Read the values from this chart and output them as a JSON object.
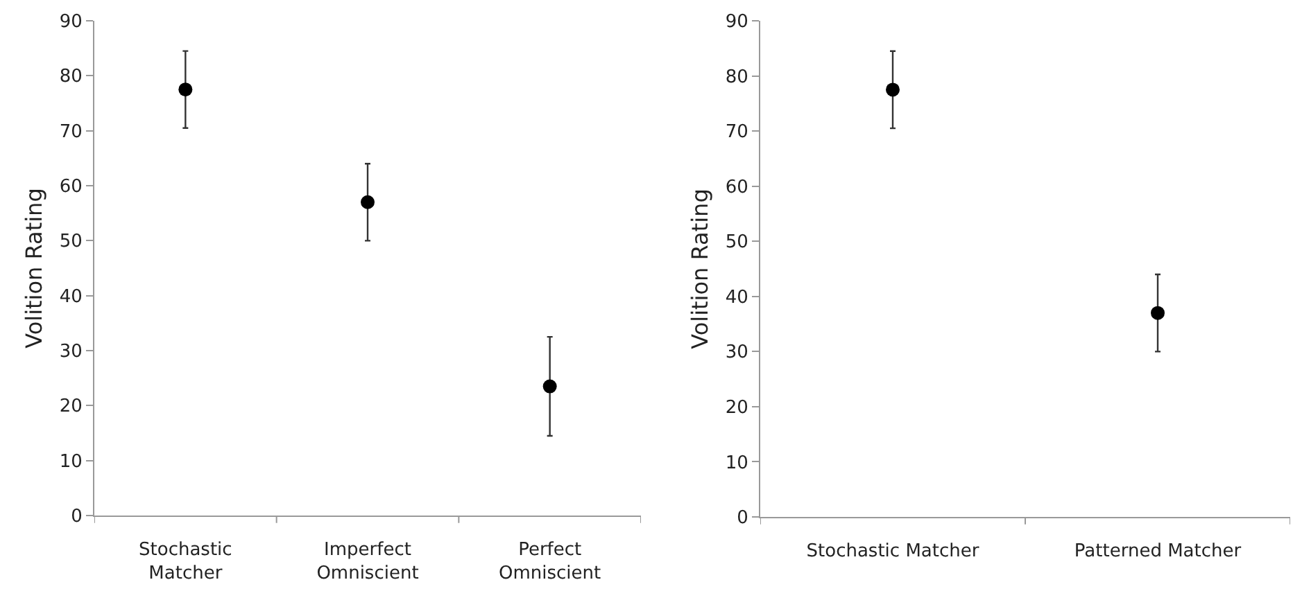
{
  "chart_data": [
    {
      "type": "scatter",
      "ylabel": "Volition Rating",
      "categories": [
        "Stochastic Matcher",
        "Imperfect Omniscient",
        "Perfect Omniscient"
      ],
      "series": [
        {
          "color": "#000000",
          "values": [
            77.5,
            57,
            23.5
          ],
          "errors": [
            [
              70.5,
              84.5
            ],
            [
              50,
              64
            ],
            [
              14.5,
              32.5
            ]
          ]
        }
      ],
      "ylim": [
        0,
        90
      ],
      "yticks": [
        0,
        10,
        20,
        30,
        40,
        50,
        60,
        70,
        80,
        90
      ],
      "marker": "circle"
    },
    {
      "type": "scatter",
      "ylabel": "Volition Rating",
      "categories": [
        "Stochastic Matcher",
        "Patterned Matcher"
      ],
      "series": [
        {
          "color": "#000000",
          "values": [
            77.5,
            37
          ],
          "errors": [
            [
              70.5,
              84.5
            ],
            [
              30,
              44
            ]
          ]
        }
      ],
      "ylim": [
        0,
        90
      ],
      "yticks": [
        0,
        10,
        20,
        30,
        40,
        50,
        60,
        70,
        80,
        90
      ],
      "marker": "circle"
    }
  ]
}
